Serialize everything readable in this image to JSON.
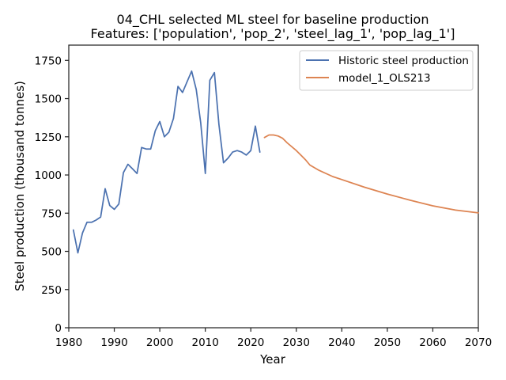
{
  "chart_data": {
    "type": "line",
    "title": "04_CHL selected ML steel for baseline production",
    "subtitle": "Features: ['population', 'pop_2', 'steel_lag_1', 'pop_lag_1']",
    "xlabel": "Year",
    "ylabel": "Steel production (thousand tonnes)",
    "xlim": [
      1980,
      2070
    ],
    "ylim": [
      0,
      1850
    ],
    "xticks": [
      1980,
      1990,
      2000,
      2010,
      2020,
      2030,
      2040,
      2050,
      2060,
      2070
    ],
    "yticks": [
      0,
      250,
      500,
      750,
      1000,
      1250,
      1500,
      1750
    ],
    "grid": false,
    "legend_position": "top-right",
    "series": [
      {
        "name": "Historic steel production",
        "color": "#4c72b0",
        "x": [
          1981,
          1982,
          1983,
          1984,
          1985,
          1986,
          1987,
          1988,
          1989,
          1990,
          1991,
          1992,
          1993,
          1994,
          1995,
          1996,
          1997,
          1998,
          1999,
          2000,
          2001,
          2002,
          2003,
          2004,
          2005,
          2006,
          2007,
          2008,
          2009,
          2010,
          2011,
          2012,
          2013,
          2014,
          2015,
          2016,
          2017,
          2018,
          2019,
          2020,
          2021,
          2022
        ],
        "y": [
          640,
          490,
          620,
          690,
          690,
          705,
          725,
          910,
          800,
          775,
          810,
          1015,
          1070,
          1040,
          1010,
          1180,
          1170,
          1170,
          1290,
          1350,
          1250,
          1280,
          1370,
          1580,
          1540,
          1610,
          1680,
          1560,
          1340,
          1010,
          1620,
          1670,
          1330,
          1080,
          1110,
          1150,
          1160,
          1150,
          1130,
          1160,
          1320,
          1150
        ]
      },
      {
        "name": "model_1_OLS213",
        "color": "#dd8452",
        "x": [
          2023,
          2024,
          2025,
          2026,
          2027,
          2028,
          2030,
          2032,
          2033,
          2035,
          2038,
          2040,
          2045,
          2050,
          2055,
          2060,
          2065,
          2070
        ],
        "y": [
          1245,
          1262,
          1262,
          1255,
          1240,
          1210,
          1160,
          1100,
          1065,
          1030,
          990,
          970,
          920,
          875,
          835,
          798,
          770,
          752
        ]
      }
    ]
  }
}
